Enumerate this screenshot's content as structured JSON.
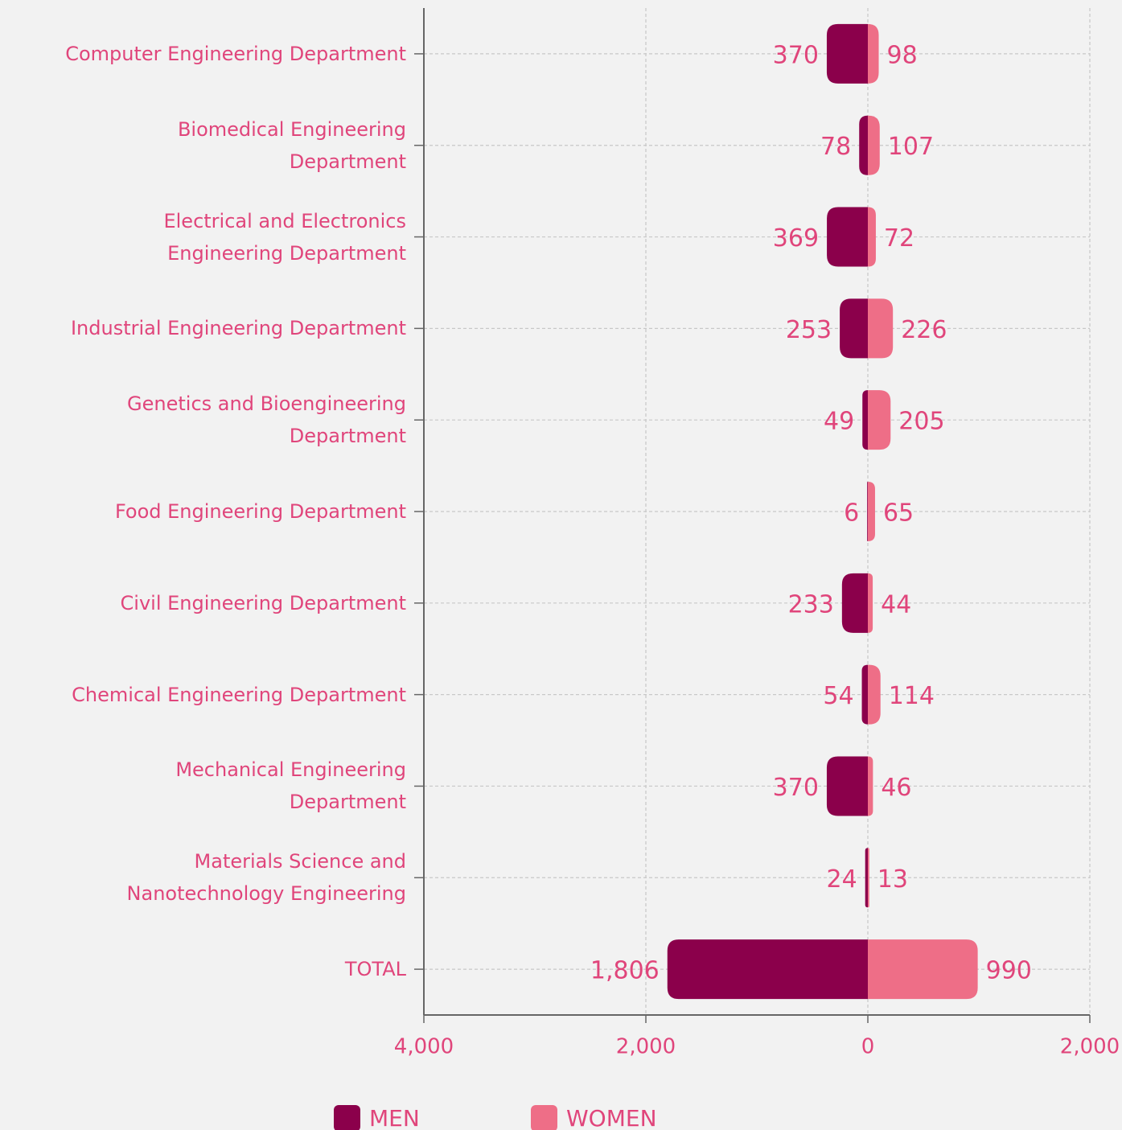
{
  "chart_data": {
    "type": "diverging-bar",
    "categories": [
      "Computer Engineering Department",
      "Biomedical Engineering Department",
      "Electrical and Electronics Engineering Department",
      "Industrial Engineering Department",
      "Genetics and Bioengineering Department",
      "Food Engineering Department",
      "Civil Engineering Department",
      "Chemical Engineering Department",
      "Mechanical Engineering Department",
      "Materials Science and Nanotechnology Engineering",
      "TOTAL"
    ],
    "series": [
      {
        "name": "MEN",
        "color": "#8b004b",
        "side": "left",
        "values": [
          370,
          78,
          369,
          253,
          49,
          6,
          233,
          54,
          370,
          24,
          1806
        ],
        "value_labels": [
          "370",
          "78",
          "369",
          "253",
          "49",
          "6",
          "233",
          "54",
          "370",
          "24",
          "1,806"
        ]
      },
      {
        "name": "WOMEN",
        "color": "#ee6e87",
        "side": "right",
        "values": [
          98,
          107,
          72,
          226,
          205,
          65,
          44,
          114,
          46,
          13,
          990
        ]
      }
    ],
    "xlim": [
      -4000,
      2000
    ],
    "xticks": [
      {
        "value": -4000,
        "label": "4,000"
      },
      {
        "value": -2000,
        "label": "2,000"
      },
      0,
      {
        "value": 2000,
        "label": "2,000"
      }
    ],
    "grid": true,
    "legend": "bottom"
  }
}
